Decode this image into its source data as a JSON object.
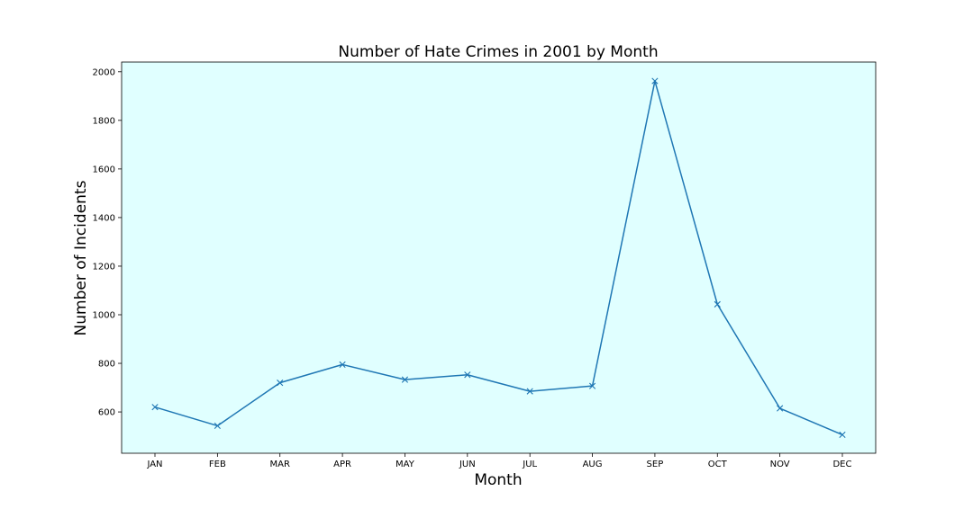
{
  "chart_data": {
    "type": "line",
    "title": "Number of Hate Crimes in 2001 by Month",
    "xlabel": "Month",
    "ylabel": "Number of Incidents",
    "categories": [
      "JAN",
      "FEB",
      "MAR",
      "APR",
      "MAY",
      "JUN",
      "JUL",
      "AUG",
      "SEP",
      "OCT",
      "NOV",
      "DEC"
    ],
    "series": [
      {
        "values": [
          620,
          543,
          720,
          795,
          733,
          753,
          685,
          707,
          1962,
          1043,
          615,
          506
        ],
        "color": "#1f77b4",
        "marker": "x"
      }
    ],
    "ylim": [
      430,
      2040
    ],
    "yticks": [
      600,
      800,
      1000,
      1200,
      1400,
      1600,
      1800,
      2000
    ],
    "grid": false,
    "plot_background": "#e0ffff"
  }
}
